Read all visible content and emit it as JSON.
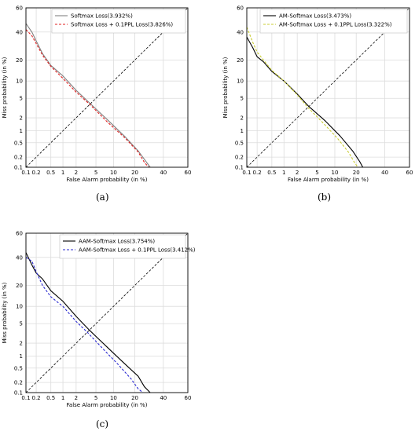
{
  "chart_data": [
    {
      "type": "line",
      "panel": "(a)",
      "xlabel": "False Alarm probability (in %)",
      "ylabel": "Miss probability (in %)",
      "xscale": "normal-deviate",
      "yscale": "normal-deviate",
      "xlim": [
        0.1,
        60
      ],
      "ylim": [
        0.1,
        60
      ],
      "xticks": [
        "0.1",
        "0.2",
        "0.5",
        "1",
        "2",
        "5",
        "10",
        "20",
        "40",
        "60"
      ],
      "yticks": [
        "0.1",
        "0.2",
        "0.5",
        "1",
        "2",
        "5",
        "10",
        "20",
        "40",
        "60"
      ],
      "grid": true,
      "legend": "top-right",
      "diagonal": true,
      "series": [
        {
          "name": "Softmax Loss(3.932%)",
          "color": "#808080",
          "style": "solid",
          "x": [
            0.1,
            0.15,
            0.2,
            0.3,
            0.5,
            1,
            2,
            3.932,
            8,
            15,
            22,
            27,
            30
          ],
          "y": [
            47,
            40,
            33,
            24,
            17,
            12,
            7.0,
            3.932,
            1.8,
            0.7,
            0.3,
            0.15,
            0.1
          ]
        },
        {
          "name": "Softmax Loss + 0.1PPL Loss(3.826%)",
          "color": "#e02020",
          "style": "dashed",
          "x": [
            0.1,
            0.15,
            0.2,
            0.3,
            0.5,
            1,
            2,
            3.826,
            8,
            15,
            22,
            26,
            29
          ],
          "y": [
            42,
            37,
            31,
            23,
            16.5,
            11,
            6.5,
            3.826,
            1.6,
            0.65,
            0.28,
            0.14,
            0.1
          ]
        }
      ]
    },
    {
      "type": "line",
      "panel": "(b)",
      "xlabel": "False Alarm probability (in %)",
      "ylabel": "Miss probability (in %)",
      "xscale": "normal-deviate",
      "yscale": "normal-deviate",
      "xlim": [
        0.1,
        60
      ],
      "ylim": [
        0.1,
        60
      ],
      "xticks": [
        "0.1",
        "0.2",
        "0.5",
        "1",
        "2",
        "5",
        "10",
        "20",
        "40",
        "60"
      ],
      "yticks": [
        "0.1",
        "0.2",
        "0.5",
        "1",
        "2",
        "5",
        "10",
        "20",
        "40",
        "60"
      ],
      "grid": true,
      "legend": "top-right",
      "diagonal": true,
      "series": [
        {
          "name": "AM-Softmax Loss(3.473%)",
          "color": "#000000",
          "style": "solid",
          "x": [
            0.1,
            0.15,
            0.2,
            0.3,
            0.5,
            1,
            2,
            3.473,
            7,
            12,
            18,
            22,
            24
          ],
          "y": [
            36,
            28,
            22,
            19,
            14,
            10,
            6,
            3.473,
            1.7,
            0.75,
            0.3,
            0.15,
            0.1
          ]
        },
        {
          "name": "AM-Softmax Loss + 0.1PPL Loss(3.322%)",
          "color": "#c8cc30",
          "style": "dashed",
          "x": [
            0.1,
            0.15,
            0.2,
            0.3,
            0.5,
            1,
            2,
            3.322,
            6.5,
            11,
            16,
            19,
            21
          ],
          "y": [
            44,
            32,
            25,
            20,
            14.5,
            10,
            5.8,
            3.322,
            1.5,
            0.65,
            0.27,
            0.14,
            0.1
          ]
        }
      ]
    },
    {
      "type": "line",
      "panel": "(c)",
      "xlabel": "False Alarm probability (in %)",
      "ylabel": "Miss probability (in %)",
      "xscale": "normal-deviate",
      "yscale": "normal-deviate",
      "xlim": [
        0.1,
        60
      ],
      "ylim": [
        0.1,
        60
      ],
      "xticks": [
        "0.1",
        "0.2",
        "0.5",
        "1",
        "2",
        "5",
        "10",
        "20",
        "40",
        "60"
      ],
      "yticks": [
        "0.1",
        "0.2",
        "0.5",
        "1",
        "2",
        "5",
        "10",
        "20",
        "40",
        "60"
      ],
      "grid": true,
      "legend": "top-right",
      "diagonal": true,
      "series": [
        {
          "name": "AAM-Softmax Loss(3.754%)",
          "color": "#000000",
          "style": "solid",
          "x": [
            0.1,
            0.15,
            0.2,
            0.3,
            0.5,
            1,
            2,
            3.754,
            8,
            14,
            22,
            26,
            30
          ],
          "y": [
            44,
            34,
            28,
            24,
            17,
            12,
            6.8,
            3.754,
            1.6,
            0.7,
            0.3,
            0.15,
            0.1
          ]
        },
        {
          "name": "AAM-Softmax Loss + 0.1PPL Loss(3.412%)",
          "color": "#2828d0",
          "style": "dashed",
          "x": [
            0.1,
            0.15,
            0.2,
            0.3,
            0.5,
            1,
            2,
            3.412,
            7,
            12,
            18,
            22,
            25
          ],
          "y": [
            40,
            37,
            29,
            20,
            14,
            10,
            5.5,
            3.412,
            1.4,
            0.6,
            0.25,
            0.13,
            0.1
          ]
        }
      ]
    }
  ]
}
